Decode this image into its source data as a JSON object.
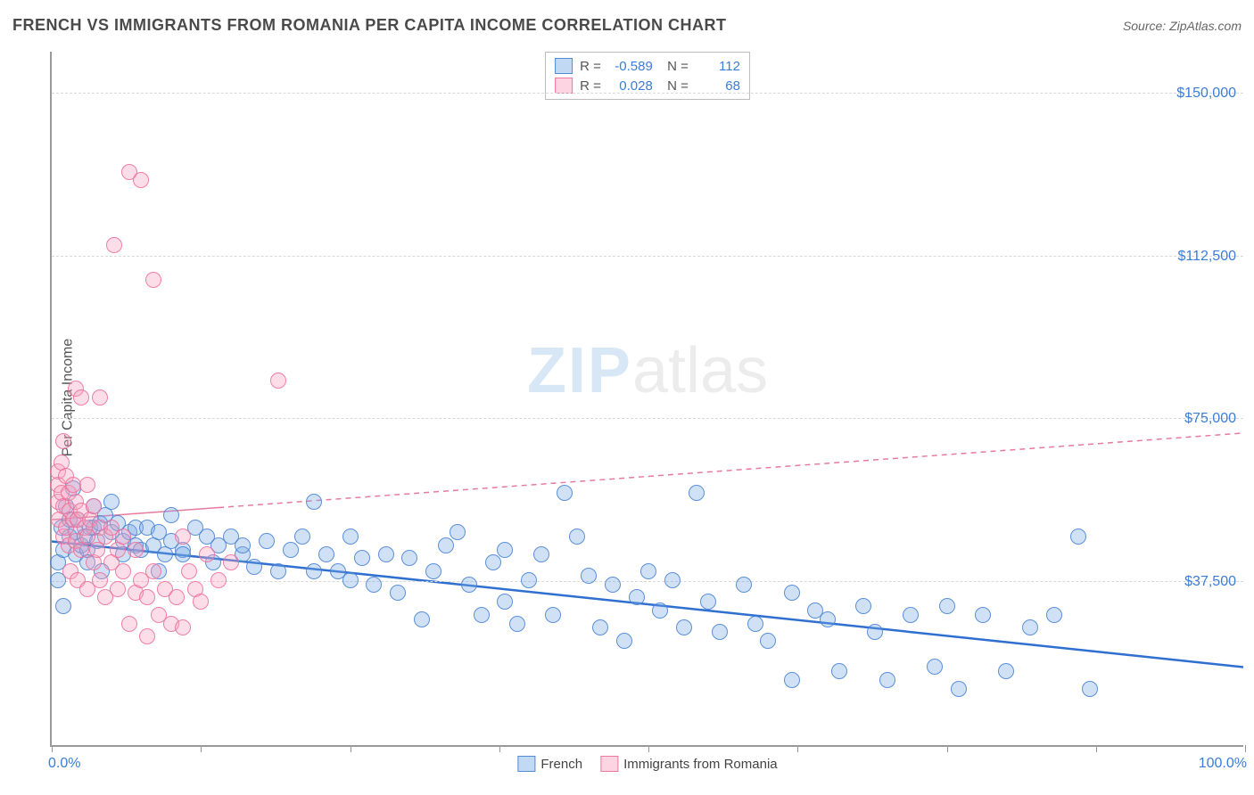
{
  "header": {
    "title": "FRENCH VS IMMIGRANTS FROM ROMANIA PER CAPITA INCOME CORRELATION CHART",
    "source_label": "Source:",
    "source_value": "ZipAtlas.com"
  },
  "chart": {
    "type": "scatter",
    "ylabel": "Per Capita Income",
    "xlim": [
      0,
      100
    ],
    "ylim": [
      0,
      160000
    ],
    "x_ticks": [
      0,
      12.5,
      25,
      37.5,
      50,
      62.5,
      75,
      87.5,
      100
    ],
    "x_tick_labels_shown": {
      "left": "0.0%",
      "right": "100.0%"
    },
    "y_gridlines": [
      37500,
      75000,
      112500,
      150000
    ],
    "y_tick_labels": [
      "$37,500",
      "$75,000",
      "$112,500",
      "$150,000"
    ],
    "background_color": "#ffffff",
    "grid_color": "#d8d8d8",
    "axis_color": "#999999",
    "label_color": "#3b7dd8",
    "marker_radius": 9,
    "series": [
      {
        "name": "French",
        "color_fill": "rgba(120,170,230,0.35)",
        "color_stroke": "rgba(70,130,210,0.85)",
        "R": "-0.589",
        "N": "112",
        "trend": {
          "x1": 0,
          "y1": 47000,
          "x2": 100,
          "y2": 18000,
          "stroke": "#2f6fd0",
          "width": 2.5,
          "dash": "none"
        },
        "points": [
          [
            0.5,
            38000
          ],
          [
            0.5,
            42000
          ],
          [
            0.8,
            50000
          ],
          [
            1,
            32000
          ],
          [
            1,
            45000
          ],
          [
            1.2,
            55000
          ],
          [
            1.5,
            48000
          ],
          [
            1.5,
            52000
          ],
          [
            1.8,
            59000
          ],
          [
            2,
            44000
          ],
          [
            2,
            49000
          ],
          [
            2.2,
            52000
          ],
          [
            2.5,
            46000
          ],
          [
            2.8,
            48000
          ],
          [
            3,
            45000
          ],
          [
            3,
            42000
          ],
          [
            3.2,
            50000
          ],
          [
            3.5,
            50000
          ],
          [
            3.5,
            55000
          ],
          [
            3.8,
            47000
          ],
          [
            4,
            51000
          ],
          [
            4.2,
            40000
          ],
          [
            4.5,
            53000
          ],
          [
            5,
            49000
          ],
          [
            5,
            56000
          ],
          [
            5.5,
            51000
          ],
          [
            6,
            47000
          ],
          [
            6,
            44000
          ],
          [
            6.5,
            49000
          ],
          [
            7,
            46000
          ],
          [
            7,
            50000
          ],
          [
            7.5,
            45000
          ],
          [
            8,
            50000
          ],
          [
            8.5,
            46000
          ],
          [
            9,
            49000
          ],
          [
            9,
            40000
          ],
          [
            9.5,
            44000
          ],
          [
            10,
            47000
          ],
          [
            10,
            53000
          ],
          [
            11,
            45000
          ],
          [
            11,
            44000
          ],
          [
            12,
            50000
          ],
          [
            13,
            48000
          ],
          [
            13.5,
            42000
          ],
          [
            14,
            46000
          ],
          [
            15,
            48000
          ],
          [
            16,
            44000
          ],
          [
            16,
            46000
          ],
          [
            17,
            41000
          ],
          [
            18,
            47000
          ],
          [
            19,
            40000
          ],
          [
            20,
            45000
          ],
          [
            21,
            48000
          ],
          [
            22,
            40000
          ],
          [
            22,
            56000
          ],
          [
            23,
            44000
          ],
          [
            24,
            40000
          ],
          [
            25,
            48000
          ],
          [
            25,
            38000
          ],
          [
            26,
            43000
          ],
          [
            27,
            37000
          ],
          [
            28,
            44000
          ],
          [
            29,
            35000
          ],
          [
            30,
            43000
          ],
          [
            31,
            29000
          ],
          [
            32,
            40000
          ],
          [
            33,
            46000
          ],
          [
            34,
            49000
          ],
          [
            35,
            37000
          ],
          [
            36,
            30000
          ],
          [
            37,
            42000
          ],
          [
            38,
            45000
          ],
          [
            38,
            33000
          ],
          [
            39,
            28000
          ],
          [
            40,
            38000
          ],
          [
            41,
            44000
          ],
          [
            42,
            30000
          ],
          [
            43,
            58000
          ],
          [
            44,
            48000
          ],
          [
            45,
            39000
          ],
          [
            46,
            27000
          ],
          [
            47,
            37000
          ],
          [
            48,
            24000
          ],
          [
            49,
            34000
          ],
          [
            50,
            40000
          ],
          [
            51,
            31000
          ],
          [
            52,
            38000
          ],
          [
            53,
            27000
          ],
          [
            54,
            58000
          ],
          [
            55,
            33000
          ],
          [
            56,
            26000
          ],
          [
            58,
            37000
          ],
          [
            59,
            28000
          ],
          [
            60,
            24000
          ],
          [
            62,
            35000
          ],
          [
            62,
            15000
          ],
          [
            64,
            31000
          ],
          [
            65,
            29000
          ],
          [
            66,
            17000
          ],
          [
            68,
            32000
          ],
          [
            69,
            26000
          ],
          [
            70,
            15000
          ],
          [
            72,
            30000
          ],
          [
            74,
            18000
          ],
          [
            75,
            32000
          ],
          [
            76,
            13000
          ],
          [
            78,
            30000
          ],
          [
            80,
            17000
          ],
          [
            82,
            27000
          ],
          [
            84,
            30000
          ],
          [
            86,
            48000
          ],
          [
            87,
            13000
          ]
        ]
      },
      {
        "name": "Immigrants from Romania",
        "color_fill": "rgba(250,160,190,0.35)",
        "color_stroke": "rgba(235,110,150,0.85)",
        "R": "0.028",
        "N": "68",
        "trend": {
          "x1": 0,
          "y1": 52000,
          "x2": 100,
          "y2": 72000,
          "stroke": "#e87aa0",
          "width": 1.5,
          "dash": "6,5",
          "solid_until": 14
        },
        "points": [
          [
            0.5,
            63000
          ],
          [
            0.5,
            60000
          ],
          [
            0.5,
            56000
          ],
          [
            0.6,
            52000
          ],
          [
            0.8,
            65000
          ],
          [
            0.8,
            58000
          ],
          [
            1,
            55000
          ],
          [
            1,
            48000
          ],
          [
            1,
            70000
          ],
          [
            1.2,
            50000
          ],
          [
            1.2,
            62000
          ],
          [
            1.4,
            58000
          ],
          [
            1.4,
            46000
          ],
          [
            1.5,
            54000
          ],
          [
            1.6,
            40000
          ],
          [
            1.8,
            52000
          ],
          [
            1.8,
            60000
          ],
          [
            2,
            47000
          ],
          [
            2,
            56000
          ],
          [
            2,
            82000
          ],
          [
            2.2,
            52000
          ],
          [
            2.2,
            38000
          ],
          [
            2.5,
            54000
          ],
          [
            2.5,
            45000
          ],
          [
            2.5,
            80000
          ],
          [
            2.8,
            50000
          ],
          [
            3,
            60000
          ],
          [
            3,
            48000
          ],
          [
            3,
            36000
          ],
          [
            3.2,
            52000
          ],
          [
            3.5,
            55000
          ],
          [
            3.5,
            42000
          ],
          [
            3.8,
            45000
          ],
          [
            4,
            80000
          ],
          [
            4,
            50000
          ],
          [
            4,
            38000
          ],
          [
            4.5,
            48000
          ],
          [
            4.5,
            34000
          ],
          [
            5,
            42000
          ],
          [
            5,
            50000
          ],
          [
            5.2,
            115000
          ],
          [
            5.5,
            45000
          ],
          [
            5.5,
            36000
          ],
          [
            6,
            40000
          ],
          [
            6,
            48000
          ],
          [
            6.5,
            28000
          ],
          [
            6.5,
            132000
          ],
          [
            7,
            45000
          ],
          [
            7,
            35000
          ],
          [
            7.5,
            38000
          ],
          [
            7.5,
            130000
          ],
          [
            8,
            34000
          ],
          [
            8,
            25000
          ],
          [
            8.5,
            40000
          ],
          [
            8.5,
            107000
          ],
          [
            9,
            30000
          ],
          [
            9.5,
            36000
          ],
          [
            10,
            28000
          ],
          [
            10.5,
            34000
          ],
          [
            11,
            48000
          ],
          [
            11,
            27000
          ],
          [
            11.5,
            40000
          ],
          [
            12,
            36000
          ],
          [
            12.5,
            33000
          ],
          [
            13,
            44000
          ],
          [
            14,
            38000
          ],
          [
            15,
            42000
          ],
          [
            19,
            84000
          ]
        ]
      }
    ],
    "legend": {
      "items": [
        {
          "swatch": "blue",
          "label": "French"
        },
        {
          "swatch": "pink",
          "label": "Immigrants from Romania"
        }
      ]
    },
    "watermark": {
      "bold": "ZIP",
      "light": "atlas"
    }
  }
}
